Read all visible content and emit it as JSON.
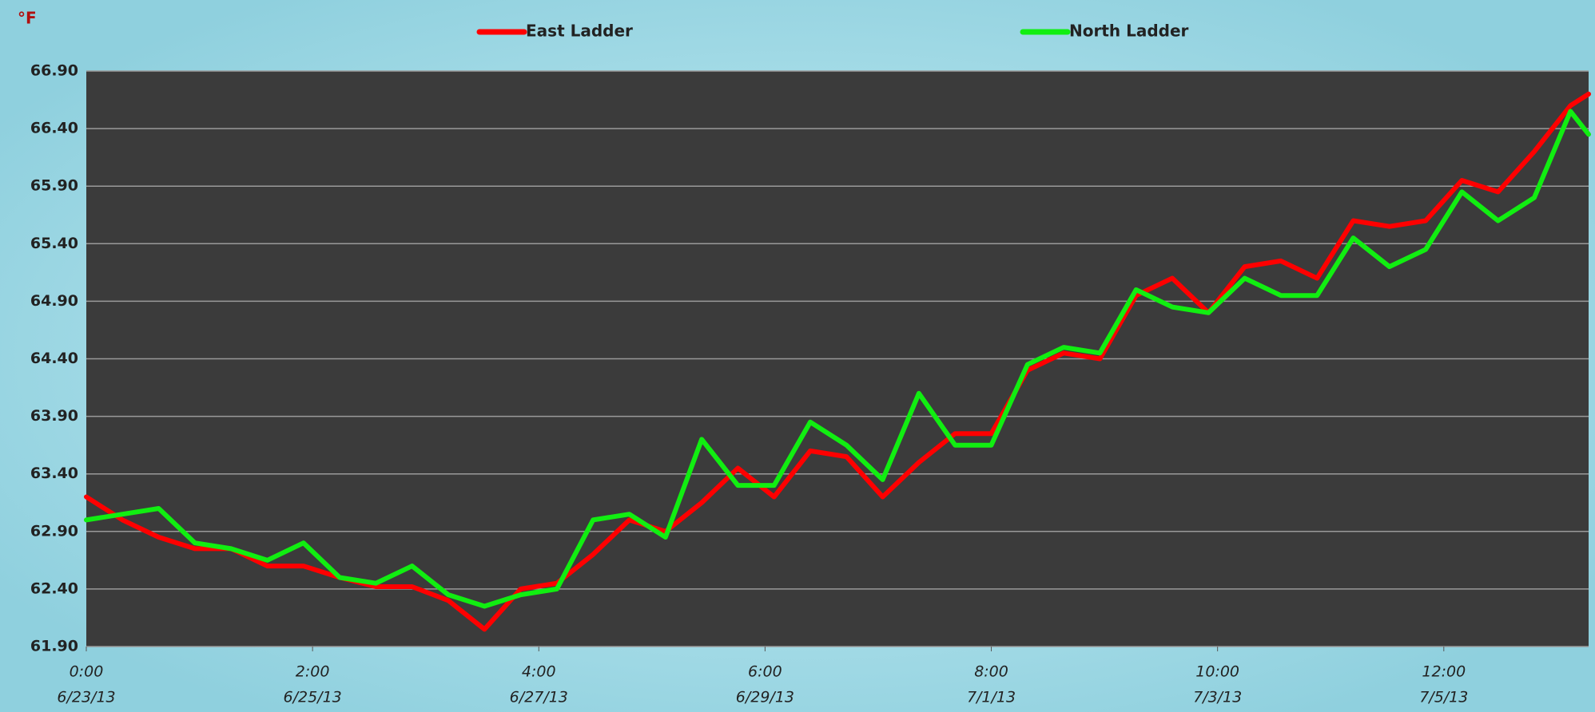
{
  "chart_data": {
    "type": "line",
    "y_axis_label": "°F",
    "x": [
      "2013-06-23T00:00",
      "2013-06-23T08:00",
      "2013-06-23T16:00",
      "2013-06-24T00:00",
      "2013-06-24T08:00",
      "2013-06-24T16:00",
      "2013-06-25T00:00",
      "2013-06-25T08:00",
      "2013-06-25T16:00",
      "2013-06-26T00:00",
      "2013-06-26T08:00",
      "2013-06-26T16:00",
      "2013-06-27T00:00",
      "2013-06-27T08:00",
      "2013-06-27T16:00",
      "2013-06-28T00:00",
      "2013-06-28T08:00",
      "2013-06-28T16:00",
      "2013-06-29T00:00",
      "2013-06-29T08:00",
      "2013-06-29T16:00",
      "2013-06-30T00:00",
      "2013-06-30T08:00",
      "2013-06-30T16:00",
      "2013-07-01T00:00",
      "2013-07-01T08:00",
      "2013-07-01T16:00",
      "2013-07-02T00:00",
      "2013-07-02T08:00",
      "2013-07-02T16:00",
      "2013-07-03T00:00",
      "2013-07-03T08:00",
      "2013-07-03T16:00",
      "2013-07-04T00:00",
      "2013-07-04T08:00",
      "2013-07-04T16:00",
      "2013-07-05T00:00",
      "2013-07-05T08:00",
      "2013-07-05T16:00",
      "2013-07-06T00:00",
      "2013-07-06T08:00",
      "2013-07-06T16:00",
      "2013-07-06T20:00"
    ],
    "series": [
      {
        "name": "East Ladder",
        "color": "#ff0000",
        "values": [
          63.2,
          63.0,
          62.85,
          62.75,
          62.75,
          62.6,
          62.6,
          62.5,
          62.42,
          62.42,
          62.3,
          62.05,
          62.4,
          62.45,
          62.7,
          63.0,
          62.9,
          63.15,
          63.45,
          63.2,
          63.6,
          63.55,
          63.2,
          63.5,
          63.75,
          63.75,
          64.3,
          64.45,
          64.4,
          64.95,
          65.1,
          64.8,
          65.2,
          65.25,
          65.1,
          65.6,
          65.55,
          65.6,
          65.95,
          65.85,
          66.2,
          66.6,
          66.7
        ]
      },
      {
        "name": "North Ladder",
        "color": "#11ee11",
        "values": [
          63.0,
          63.05,
          63.1,
          62.8,
          62.75,
          62.65,
          62.8,
          62.5,
          62.45,
          62.6,
          62.35,
          62.25,
          62.35,
          62.4,
          63.0,
          63.05,
          62.85,
          63.7,
          63.3,
          63.3,
          63.85,
          63.65,
          63.35,
          64.1,
          63.65,
          63.65,
          64.35,
          64.5,
          64.45,
          65.0,
          64.85,
          64.8,
          65.1,
          64.95,
          64.95,
          65.45,
          65.2,
          65.35,
          65.85,
          65.6,
          65.8,
          66.55,
          66.35
        ]
      }
    ],
    "xlim": [
      "2013-06-23T00:00",
      "2013-07-06T20:00"
    ],
    "xticks": [
      {
        "value": "2013-06-23T00:00",
        "label": [
          "0:00",
          "6/23/13"
        ]
      },
      {
        "value": "2013-06-25T02:00",
        "label": [
          "2:00",
          "6/25/13"
        ]
      },
      {
        "value": "2013-06-27T04:00",
        "label": [
          "4:00",
          "6/27/13"
        ]
      },
      {
        "value": "2013-06-29T06:00",
        "label": [
          "6:00",
          "6/29/13"
        ]
      },
      {
        "value": "2013-07-01T08:00",
        "label": [
          "8:00",
          "7/1/13"
        ]
      },
      {
        "value": "2013-07-03T10:00",
        "label": [
          "10:00",
          "7/3/13"
        ]
      },
      {
        "value": "2013-07-05T12:00",
        "label": [
          "12:00",
          "7/5/13"
        ]
      }
    ],
    "ylim": [
      61.9,
      66.9
    ],
    "yticks": [
      {
        "value": 61.9,
        "label": "61.90"
      },
      {
        "value": 62.4,
        "label": "62.40"
      },
      {
        "value": 62.9,
        "label": "62.90"
      },
      {
        "value": 63.4,
        "label": "63.40"
      },
      {
        "value": 63.9,
        "label": "63.90"
      },
      {
        "value": 64.4,
        "label": "64.40"
      },
      {
        "value": 64.9,
        "label": "64.90"
      },
      {
        "value": 65.4,
        "label": "65.40"
      },
      {
        "value": 65.9,
        "label": "65.90"
      },
      {
        "value": 66.4,
        "label": "66.40"
      },
      {
        "value": 66.9,
        "label": "66.90"
      }
    ],
    "grid": true,
    "legend": "top"
  }
}
